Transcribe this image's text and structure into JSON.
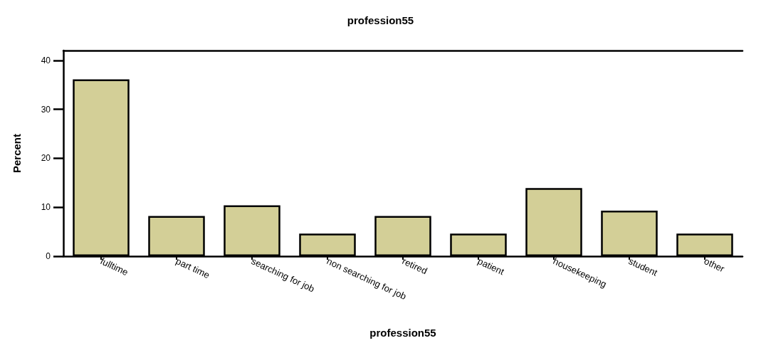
{
  "chart_data": {
    "type": "bar",
    "title": "profession55",
    "xlabel": "profession55",
    "ylabel": "Percent",
    "categories": [
      "fulltime",
      "part time",
      "searching for job",
      "non searching for job",
      "retired",
      "patient",
      "housekeeping",
      "student",
      "other"
    ],
    "values": [
      36.1,
      8.2,
      10.4,
      4.6,
      8.2,
      4.6,
      13.9,
      9.3,
      4.6
    ],
    "color": "#d3cf97",
    "ylim": [
      0,
      42
    ],
    "yticks": [
      0,
      10,
      20,
      30,
      40
    ],
    "grid": false
  }
}
